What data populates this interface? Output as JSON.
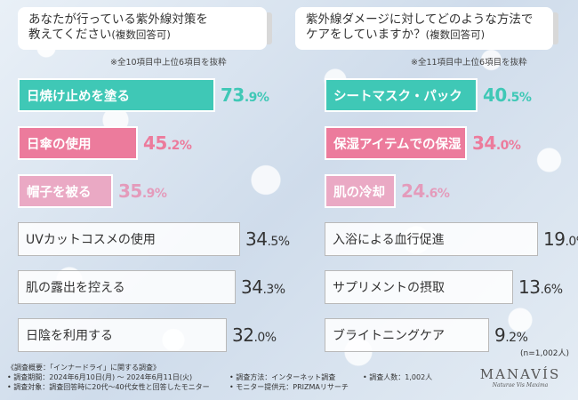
{
  "left": {
    "title_line1": "あなたが行っている紫外線対策を",
    "title_line2": "教えてください",
    "title_suffix": "(複数回答可)",
    "note": "※全10項目中上位6項目を抜粋"
  },
  "right": {
    "title_line1": "紫外線ダメージに対してどのような方法で",
    "title_line2": "ケアをしていますか？",
    "title_suffix": "(複数回答可)",
    "note": "※全11項目中上位6項目を抜粋"
  },
  "chart_data": [
    {
      "type": "bar",
      "orientation": "horizontal",
      "title": "あなたが行っている紫外線対策を教えてください(複数回答可)",
      "categories": [
        "日焼け止めを塗る",
        "日傘の使用",
        "帽子を被る",
        "UVカットコスメの使用",
        "肌の露出を控える",
        "日陰を利用する"
      ],
      "values": [
        73.9,
        45.2,
        35.9,
        34.5,
        34.3,
        32.0
      ],
      "unit": "%",
      "labels": [
        {
          "int": "73",
          "dec": ".9%"
        },
        {
          "int": "45",
          "dec": ".2%"
        },
        {
          "int": "35",
          "dec": ".9%"
        },
        {
          "int": "34",
          "dec": ".5%"
        },
        {
          "int": "34",
          "dec": ".3%"
        },
        {
          "int": "32",
          "dec": ".0%"
        }
      ],
      "highlight_colors": [
        "#3fc8b6",
        "#ec7b9c",
        "#eaa9c4"
      ]
    },
    {
      "type": "bar",
      "orientation": "horizontal",
      "title": "紫外線ダメージに対してどのような方法でケアをしていますか？(複数回答可)",
      "categories": [
        "シートマスク・パック",
        "保湿アイテムでの保湿",
        "肌の冷却",
        "入浴による血行促進",
        "サプリメントの摂取",
        "ブライトニングケア"
      ],
      "values": [
        40.5,
        34.0,
        24.6,
        19.0,
        13.6,
        9.2
      ],
      "unit": "%",
      "labels": [
        {
          "int": "40",
          "dec": ".5%"
        },
        {
          "int": "34",
          "dec": ".0%"
        },
        {
          "int": "24",
          "dec": ".6%"
        },
        {
          "int": "19",
          "dec": ".0%"
        },
        {
          "int": "13",
          "dec": ".6%"
        },
        {
          "int": "9",
          "dec": ".2%"
        }
      ],
      "highlight_colors": [
        "#3fc8b6",
        "#ec7b9c",
        "#eaa9c4"
      ]
    }
  ],
  "sample": "(n=1,002人)",
  "footer": {
    "l1": "《調査概要：「インナードライ」に関する調査》",
    "l2": "• 調査期間：2024年6月10日(月) ～ 2024年6月11日(火)",
    "l3": "• 調査対象：調査回答時に20代～40代女性と回答したモニター",
    "m1": "• 調査方法：インターネット調査",
    "m2": "• モニター提供元：PRIZMAリサーチ",
    "r1": "• 調査人数：1,002人"
  },
  "brand": {
    "logo": "MANAVÍS",
    "tagline": "Naturae Vis Maxima"
  }
}
